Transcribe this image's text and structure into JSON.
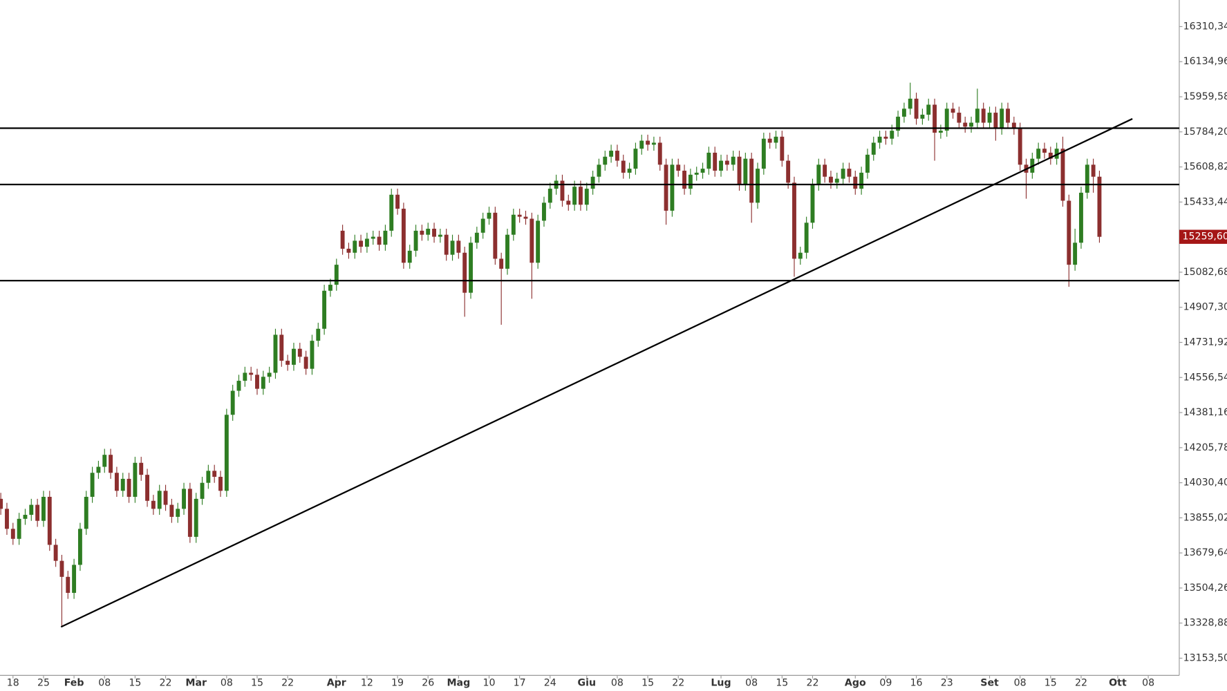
{
  "chart_data": {
    "type": "candlestick",
    "open": [
      13950,
      13900,
      13800,
      13750,
      13850,
      13870,
      13920,
      13840,
      13960,
      13720,
      13640,
      13560,
      13480,
      13620,
      13800,
      13960,
      14080,
      14110,
      14170,
      14080,
      13990,
      14050,
      13960,
      14130,
      14070,
      13940,
      13900,
      13990,
      13920,
      13860,
      13900,
      14000,
      13760,
      13950,
      14030,
      14090,
      14060,
      13990,
      14370,
      14490,
      14540,
      14580,
      14570,
      14500,
      14560,
      14580,
      14770,
      14640,
      14620,
      14700,
      14660,
      14600,
      14740,
      14800,
      14990,
      15020,
      15290,
      15200,
      15180,
      15240,
      15210,
      15250,
      15260,
      15220,
      15290,
      15470,
      15400,
      15130,
      15190,
      15290,
      15270,
      15300,
      15260,
      15270,
      15170,
      15240,
      15180,
      14980,
      15230,
      15280,
      15350,
      15380,
      15150,
      15100,
      15270,
      15370,
      15360,
      15350,
      15130,
      15340,
      15430,
      15500,
      15540,
      15440,
      15420,
      15510,
      15420,
      15500,
      15560,
      15620,
      15660,
      15690,
      15640,
      15580,
      15600,
      15700,
      15740,
      15720,
      15730,
      15620,
      15390,
      15620,
      15590,
      15500,
      15570,
      15580,
      15600,
      15680,
      15590,
      15640,
      15620,
      15660,
      15520,
      15650,
      15430,
      15600,
      15750,
      15730,
      15760,
      15640,
      15530,
      15150,
      15180,
      15330,
      15520,
      15620,
      15560,
      15530,
      15550,
      15600,
      15560,
      15500,
      15580,
      15670,
      15730,
      15760,
      15750,
      15790,
      15860,
      15900,
      15950,
      15850,
      15870,
      15920,
      15780,
      15790,
      15900,
      15880,
      15830,
      15810,
      15830,
      15900,
      15830,
      15880,
      15800,
      15900,
      15830,
      15800,
      15620,
      15580,
      15650,
      15700,
      15680,
      15650,
      15700,
      15440,
      15120,
      15230,
      15480,
      15620,
      15560
    ],
    "high": [
      13980,
      13930,
      13830,
      13880,
      13900,
      13950,
      13950,
      13990,
      13990,
      13750,
      13670,
      13590,
      13650,
      13830,
      13990,
      14110,
      14140,
      14200,
      14200,
      14110,
      14080,
      14080,
      14160,
      14160,
      14100,
      13970,
      14020,
      14020,
      13950,
      13930,
      14030,
      14030,
      13980,
      14060,
      14120,
      14120,
      14090,
      14400,
      14520,
      14570,
      14610,
      14610,
      14600,
      14590,
      14610,
      14800,
      14800,
      14670,
      14730,
      14730,
      14690,
      14770,
      14830,
      15020,
      15050,
      15150,
      15320,
      15230,
      15270,
      15270,
      15280,
      15290,
      15290,
      15320,
      15500,
      15500,
      15430,
      15220,
      15320,
      15320,
      15330,
      15330,
      15300,
      15300,
      15270,
      15270,
      15210,
      15260,
      15310,
      15380,
      15410,
      15410,
      15180,
      15300,
      15400,
      15400,
      15390,
      15380,
      15370,
      15460,
      15530,
      15570,
      15570,
      15470,
      15540,
      15540,
      15530,
      15590,
      15650,
      15690,
      15720,
      15720,
      15670,
      15630,
      15730,
      15770,
      15770,
      15760,
      15760,
      15650,
      15650,
      15650,
      15620,
      15600,
      15610,
      15630,
      15710,
      15710,
      15670,
      15670,
      15690,
      15690,
      15680,
      15680,
      15630,
      15780,
      15780,
      15790,
      15790,
      15670,
      15560,
      15210,
      15360,
      15550,
      15650,
      15650,
      15590,
      15580,
      15630,
      15630,
      15590,
      15610,
      15700,
      15760,
      15790,
      15790,
      15820,
      15890,
      15930,
      16030,
      15980,
      15900,
      15950,
      15950,
      15820,
      15930,
      15930,
      15910,
      15860,
      15860,
      16000,
      15930,
      15910,
      15910,
      15930,
      15930,
      15860,
      15830,
      15650,
      15680,
      15730,
      15730,
      15710,
      15730,
      15760,
      15470,
      15300,
      15510,
      15650,
      15650,
      15590
    ],
    "low": [
      13870,
      13770,
      13720,
      13720,
      13820,
      13840,
      13810,
      13810,
      13690,
      13610,
      13310,
      13450,
      13450,
      13590,
      13770,
      13930,
      14050,
      14080,
      14050,
      13960,
      13960,
      13930,
      13930,
      14040,
      13910,
      13870,
      13870,
      13890,
      13830,
      13830,
      13870,
      13730,
      13730,
      13920,
      14000,
      14030,
      13960,
      13960,
      14340,
      14460,
      14510,
      14540,
      14470,
      14470,
      14530,
      14550,
      14610,
      14590,
      14590,
      14630,
      14570,
      14570,
      14710,
      14770,
      14960,
      14990,
      15170,
      15150,
      15150,
      15180,
      15180,
      15220,
      15190,
      15190,
      15260,
      15370,
      15100,
      15100,
      15160,
      15240,
      15240,
      15230,
      15230,
      15140,
      15140,
      15150,
      14860,
      14950,
      15200,
      15250,
      15320,
      15120,
      14820,
      15070,
      15240,
      15330,
      15320,
      14950,
      15100,
      15310,
      15400,
      15470,
      15410,
      15390,
      15390,
      15390,
      15390,
      15470,
      15530,
      15590,
      15630,
      15610,
      15550,
      15550,
      15570,
      15670,
      15690,
      15690,
      15590,
      15320,
      15360,
      15560,
      15470,
      15470,
      15540,
      15550,
      15570,
      15560,
      15560,
      15590,
      15590,
      15490,
      15490,
      15330,
      15400,
      15570,
      15700,
      15700,
      15610,
      15500,
      15060,
      15120,
      15150,
      15300,
      15490,
      15530,
      15500,
      15500,
      15520,
      15530,
      15470,
      15470,
      15550,
      15640,
      15700,
      15720,
      15720,
      15760,
      15830,
      15870,
      15820,
      15820,
      15840,
      15640,
      15750,
      15760,
      15850,
      15800,
      15780,
      15780,
      15800,
      15800,
      15800,
      15740,
      15770,
      15800,
      15770,
      15590,
      15450,
      15550,
      15620,
      15650,
      15620,
      15620,
      15410,
      15010,
      15090,
      15200,
      15450,
      15480,
      15230
    ],
    "close": [
      13900,
      13800,
      13750,
      13850,
      13870,
      13920,
      13840,
      13960,
      13720,
      13640,
      13560,
      13480,
      13620,
      13800,
      13960,
      14080,
      14110,
      14170,
      14080,
      13990,
      14050,
      13960,
      14130,
      14070,
      13940,
      13900,
      13990,
      13920,
      13860,
      13900,
      14000,
      13760,
      13950,
      14030,
      14090,
      14060,
      13990,
      14370,
      14490,
      14540,
      14580,
      14570,
      14500,
      14560,
      14580,
      14770,
      14640,
      14620,
      14700,
      14660,
      14600,
      14740,
      14800,
      14990,
      15020,
      15120,
      15200,
      15180,
      15240,
      15210,
      15250,
      15260,
      15220,
      15290,
      15470,
      15400,
      15130,
      15190,
      15290,
      15270,
      15300,
      15260,
      15270,
      15170,
      15240,
      15180,
      14980,
      15230,
      15280,
      15350,
      15380,
      15150,
      15100,
      15270,
      15370,
      15360,
      15350,
      15130,
      15340,
      15430,
      15500,
      15540,
      15440,
      15420,
      15510,
      15420,
      15500,
      15560,
      15620,
      15660,
      15690,
      15640,
      15580,
      15600,
      15700,
      15740,
      15720,
      15730,
      15620,
      15390,
      15620,
      15590,
      15500,
      15570,
      15580,
      15600,
      15680,
      15590,
      15640,
      15620,
      15660,
      15520,
      15650,
      15430,
      15600,
      15750,
      15730,
      15760,
      15640,
      15530,
      15150,
      15180,
      15330,
      15520,
      15620,
      15560,
      15530,
      15550,
      15600,
      15560,
      15500,
      15580,
      15670,
      15730,
      15760,
      15750,
      15790,
      15860,
      15900,
      15950,
      15850,
      15870,
      15920,
      15780,
      15790,
      15900,
      15880,
      15830,
      15810,
      15830,
      15900,
      15830,
      15880,
      15800,
      15900,
      15830,
      15800,
      15620,
      15580,
      15650,
      15700,
      15680,
      15650,
      15700,
      15440,
      15120,
      15230,
      15480,
      15620,
      15560,
      15259.6
    ],
    "up_color": "#2e7d22",
    "down_color": "#8c2f2f",
    "xlim": [
      -0.13,
      193.08
    ],
    "xticks": [
      {
        "value": 2,
        "label": "18"
      },
      {
        "value": 7,
        "label": "25"
      },
      {
        "value": 12,
        "label": "Feb"
      },
      {
        "value": 17,
        "label": "08"
      },
      {
        "value": 22,
        "label": "15"
      },
      {
        "value": 27,
        "label": "22"
      },
      {
        "value": 32,
        "label": "Mar"
      },
      {
        "value": 37,
        "label": "08"
      },
      {
        "value": 42,
        "label": "15"
      },
      {
        "value": 47,
        "label": "22"
      },
      {
        "value": 55,
        "label": "Apr"
      },
      {
        "value": 60,
        "label": "12"
      },
      {
        "value": 65,
        "label": "19"
      },
      {
        "value": 70,
        "label": "26"
      },
      {
        "value": 75,
        "label": "Mag"
      },
      {
        "value": 80,
        "label": "10"
      },
      {
        "value": 85,
        "label": "17"
      },
      {
        "value": 90,
        "label": "24"
      },
      {
        "value": 96,
        "label": "Giu"
      },
      {
        "value": 101,
        "label": "08"
      },
      {
        "value": 106,
        "label": "15"
      },
      {
        "value": 111,
        "label": "22"
      },
      {
        "value": 118,
        "label": "Lug"
      },
      {
        "value": 123,
        "label": "08"
      },
      {
        "value": 128,
        "label": "15"
      },
      {
        "value": 133,
        "label": "22"
      },
      {
        "value": 140,
        "label": "Ago"
      },
      {
        "value": 145,
        "label": "09"
      },
      {
        "value": 150,
        "label": "16"
      },
      {
        "value": 155,
        "label": "23"
      },
      {
        "value": 162,
        "label": "Set"
      },
      {
        "value": 167,
        "label": "08"
      },
      {
        "value": 172,
        "label": "15"
      },
      {
        "value": 177,
        "label": "22"
      },
      {
        "value": 183,
        "label": "Ott"
      },
      {
        "value": 188,
        "label": "08"
      }
    ],
    "ylim": [
      13067.6,
      16443.2
    ],
    "yticks": [
      {
        "value": 16310.34,
        "label": "16310,34"
      },
      {
        "value": 16134.96,
        "label": "16134,96"
      },
      {
        "value": 15959.58,
        "label": "15959,58"
      },
      {
        "value": 15784.2,
        "label": "15784,20"
      },
      {
        "value": 15608.82,
        "label": "15608,82"
      },
      {
        "value": 15433.44,
        "label": "15433,44"
      },
      {
        "value": 15082.68,
        "label": "15082,68"
      },
      {
        "value": 14907.3,
        "label": "14907,30"
      },
      {
        "value": 14731.92,
        "label": "14731,92"
      },
      {
        "value": 14556.54,
        "label": "14556,54"
      },
      {
        "value": 14381.16,
        "label": "14381,16"
      },
      {
        "value": 14205.78,
        "label": "14205,78"
      },
      {
        "value": 14030.4,
        "label": "14030,40"
      },
      {
        "value": 13855.02,
        "label": "13855,02"
      },
      {
        "value": 13679.64,
        "label": "13679,64"
      },
      {
        "value": 13504.26,
        "label": "13504,26"
      },
      {
        "value": 13328.88,
        "label": "13328,88"
      },
      {
        "value": 13153.5,
        "label": "13153,50"
      }
    ],
    "levels": [
      15802.4,
      15521.1,
      15040.6
    ],
    "trendline": {
      "x": [
        9.87,
        185.4
      ],
      "y": [
        13309.8,
        15849.3
      ]
    },
    "last_price": {
      "value": 15259.6,
      "label": "15259,60",
      "color": "#a51616"
    }
  }
}
